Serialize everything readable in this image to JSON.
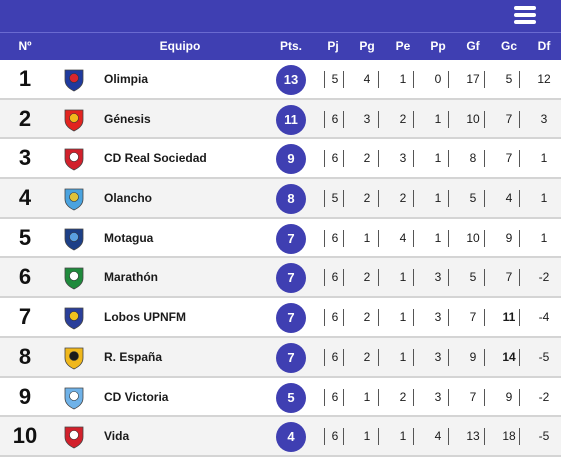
{
  "header": {
    "columns": [
      "Nº",
      "Equipo",
      "Pts.",
      "Pj",
      "Pg",
      "Pe",
      "Pp",
      "Gf",
      "Gc",
      "Df"
    ]
  },
  "standings": [
    {
      "pos": "1",
      "team": "Olimpia",
      "crest": "olimpia-crest-icon",
      "pts": "13",
      "pj": "5",
      "pg": "4",
      "pe": "1",
      "pp": "0",
      "gf": "17",
      "gc": "5",
      "df": "12",
      "bold_gc": false,
      "c1": "#1f3a9e",
      "c2": "#d8262e"
    },
    {
      "pos": "2",
      "team": "Génesis",
      "crest": "genesis-crest-icon",
      "pts": "11",
      "pj": "6",
      "pg": "3",
      "pe": "2",
      "pp": "1",
      "gf": "10",
      "gc": "7",
      "df": "3",
      "bold_gc": false,
      "c1": "#e2241f",
      "c2": "#f2b81c"
    },
    {
      "pos": "3",
      "team": "CD Real Sociedad",
      "crest": "real-sociedad-crest-icon",
      "pts": "9",
      "pj": "6",
      "pg": "2",
      "pe": "3",
      "pp": "1",
      "gf": "8",
      "gc": "7",
      "df": "1",
      "bold_gc": false,
      "c1": "#d2202b",
      "c2": "#ffffff"
    },
    {
      "pos": "4",
      "team": "Olancho",
      "crest": "olancho-crest-icon",
      "pts": "8",
      "pj": "5",
      "pg": "2",
      "pe": "2",
      "pp": "1",
      "gf": "5",
      "gc": "4",
      "df": "1",
      "bold_gc": false,
      "c1": "#4aa3df",
      "c2": "#e0c23a"
    },
    {
      "pos": "5",
      "team": "Motagua",
      "crest": "motagua-crest-icon",
      "pts": "7",
      "pj": "6",
      "pg": "1",
      "pe": "4",
      "pp": "1",
      "gf": "10",
      "gc": "9",
      "df": "1",
      "bold_gc": false,
      "c1": "#1c3f87",
      "c2": "#5aa0e0"
    },
    {
      "pos": "6",
      "team": "Marathón",
      "crest": "marathon-crest-icon",
      "pts": "7",
      "pj": "6",
      "pg": "2",
      "pe": "1",
      "pp": "3",
      "gf": "5",
      "gc": "7",
      "df": "-2",
      "bold_gc": false,
      "c1": "#1f8a3c",
      "c2": "#ffffff"
    },
    {
      "pos": "7",
      "team": "Lobos UPNFM",
      "crest": "lobos-upnfm-crest-icon",
      "pts": "7",
      "pj": "6",
      "pg": "2",
      "pe": "1",
      "pp": "3",
      "gf": "7",
      "gc": "11",
      "df": "-4",
      "bold_gc": true,
      "c1": "#2a3f9a",
      "c2": "#f0c21e"
    },
    {
      "pos": "8",
      "team": "R. España",
      "crest": "real-espana-crest-icon",
      "pts": "7",
      "pj": "6",
      "pg": "2",
      "pe": "1",
      "pp": "3",
      "gf": "9",
      "gc": "14",
      "df": "-5",
      "bold_gc": true,
      "c1": "#f0b81c",
      "c2": "#1a1a1a"
    },
    {
      "pos": "9",
      "team": "CD Victoria",
      "crest": "victoria-crest-icon",
      "pts": "5",
      "pj": "6",
      "pg": "1",
      "pe": "2",
      "pp": "3",
      "gf": "7",
      "gc": "9",
      "df": "-2",
      "bold_gc": false,
      "c1": "#6fb2e8",
      "c2": "#ffffff"
    },
    {
      "pos": "10",
      "team": "Vida",
      "crest": "vida-crest-icon",
      "pts": "4",
      "pj": "6",
      "pg": "1",
      "pe": "1",
      "pp": "4",
      "gf": "13",
      "gc": "18",
      "df": "-5",
      "bold_gc": false,
      "c1": "#d2202b",
      "c2": "#ffffff"
    }
  ],
  "colors": {
    "accent": "#3f3fb2",
    "row_alt": "#f3f3f3"
  }
}
